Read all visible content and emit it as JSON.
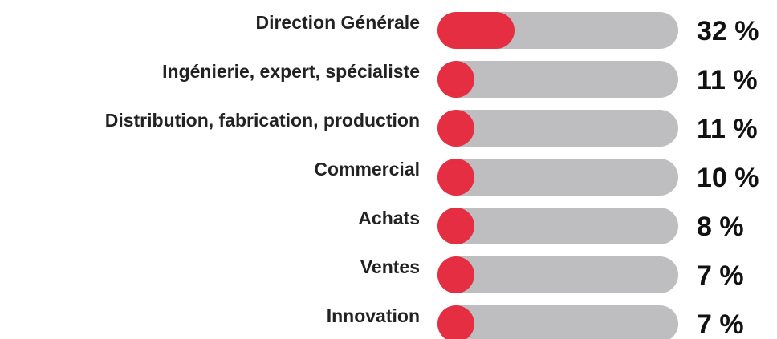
{
  "chart_data": {
    "type": "bar",
    "orientation": "horizontal",
    "categories": [
      "Direction Générale",
      "Ingénierie, expert, spécialiste",
      "Distribution, fabrication, production",
      "Commercial",
      "Achats",
      "Ventes",
      "Innovation"
    ],
    "values": [
      32,
      11,
      11,
      10,
      8,
      7,
      7
    ],
    "value_labels": [
      "32 %",
      "11 %",
      "11 %",
      "10 %",
      "8 %",
      "7 %",
      "7 %"
    ],
    "xlim": [
      0,
      100
    ],
    "color": "#e52e42",
    "track_color": "#bebec0"
  }
}
